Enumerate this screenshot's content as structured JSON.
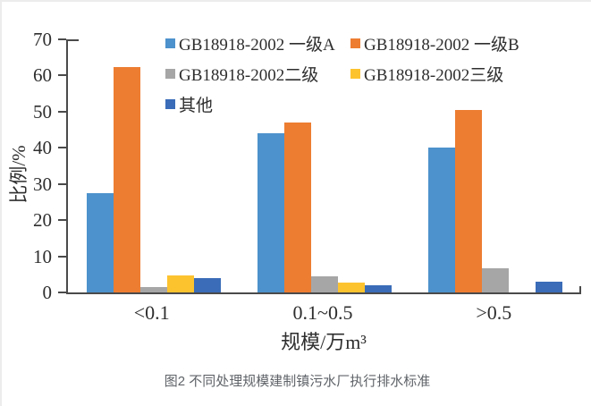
{
  "chart_data": {
    "type": "bar",
    "title": "",
    "categories": [
      "<0.1",
      "0.1~0.5",
      ">0.5"
    ],
    "series": [
      {
        "name": "GB18918-2002 一级A",
        "color": "#4d92cc",
        "values": [
          27.5,
          44.0,
          40.0
        ]
      },
      {
        "name": "GB18918-2002 一级B",
        "color": "#ed7d31",
        "values": [
          62.3,
          47.0,
          50.5
        ]
      },
      {
        "name": "GB18918-2002二级",
        "color": "#a6a6a6",
        "values": [
          1.5,
          4.5,
          6.7
        ]
      },
      {
        "name": "GB18918-2002三级",
        "color": "#fdc32f",
        "values": [
          4.8,
          2.7,
          0
        ]
      },
      {
        "name": "其他",
        "color": "#3a6cb8",
        "values": [
          4.0,
          2.0,
          3.0
        ]
      }
    ],
    "xlabel": "规模/万m³",
    "ylabel": "比例/%",
    "ylim": [
      0,
      70
    ],
    "yticks": [
      0,
      10,
      20,
      30,
      40,
      50,
      60,
      70
    ],
    "grid": false,
    "legend_position": "top-inside"
  },
  "caption": "图2 不同处理规模建制镇污水厂执行排水标准"
}
